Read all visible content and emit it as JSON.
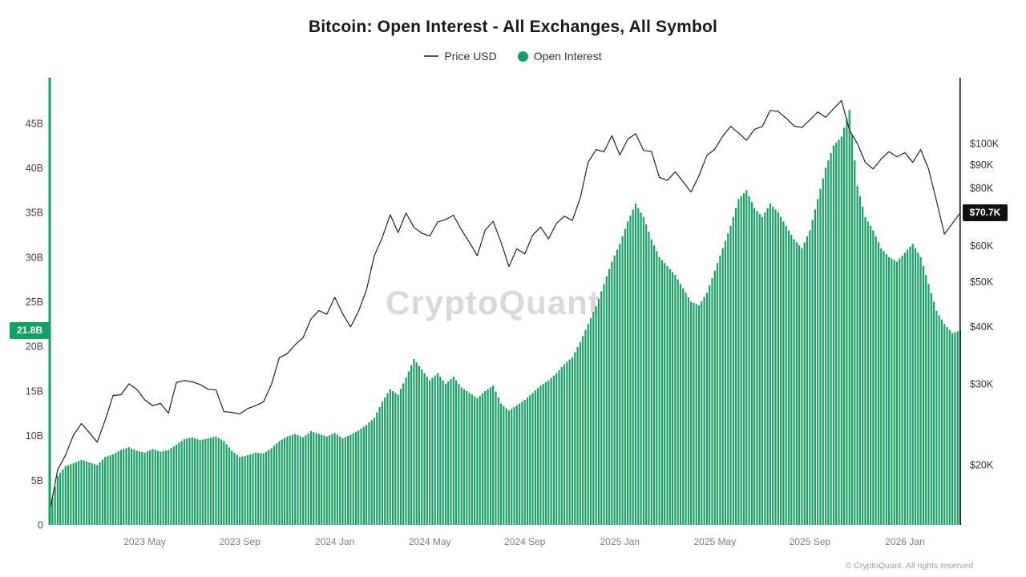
{
  "header": {
    "title": "Bitcoin: Open Interest - All Exchanges, All Symbol",
    "legend": [
      {
        "label": "Price USD",
        "marker": "line",
        "color": "#555555"
      },
      {
        "label": "Open Interest",
        "marker": "dot",
        "color": "#15a162"
      }
    ]
  },
  "badges": {
    "open_interest": {
      "label": "21.8B",
      "value": 21.8,
      "bg": "#15a162"
    },
    "price": {
      "label": "$70.7K",
      "value": 70.7,
      "bg": "#111111"
    }
  },
  "watermark": "CryptoQuant",
  "footer": "© CryptoQuant. All rights reserved",
  "chart_data": {
    "type": "bar",
    "title": "Bitcoin: Open Interest - All Exchanges, All Symbol",
    "x_unit": "months since 2023-01",
    "x_domain": [
      0,
      38.33
    ],
    "x_ticks": [
      {
        "t": 4,
        "label": "2023 May"
      },
      {
        "t": 8,
        "label": "2023 Sep"
      },
      {
        "t": 12,
        "label": "2024 Jan"
      },
      {
        "t": 16,
        "label": "2024 May"
      },
      {
        "t": 20,
        "label": "2024 Sep"
      },
      {
        "t": 24,
        "label": "2025 Jan"
      },
      {
        "t": 28,
        "label": "2025 May"
      },
      {
        "t": 32,
        "label": "2025 Sep"
      },
      {
        "t": 36,
        "label": "2026 Jan"
      }
    ],
    "y_left": {
      "label": "Open Interest (billions USD)",
      "scale": "linear",
      "domain": [
        0,
        50.1
      ],
      "ticks": [
        {
          "v": 0,
          "label": "0"
        },
        {
          "v": 5,
          "label": "5B"
        },
        {
          "v": 10,
          "label": "10B"
        },
        {
          "v": 15,
          "label": "15B"
        },
        {
          "v": 20,
          "label": "20B"
        },
        {
          "v": 25,
          "label": "25B"
        },
        {
          "v": 30,
          "label": "30B"
        },
        {
          "v": 35,
          "label": "35B"
        },
        {
          "v": 40,
          "label": "40B"
        },
        {
          "v": 45,
          "label": "45B"
        }
      ]
    },
    "y_right": {
      "label": "Price USD",
      "scale": "log",
      "domain": [
        14.8,
        139
      ],
      "unit": "K USD",
      "ticks": [
        {
          "v": 20,
          "label": "$20K"
        },
        {
          "v": 30,
          "label": "$30K"
        },
        {
          "v": 40,
          "label": "$40K"
        },
        {
          "v": 50,
          "label": "$50K"
        },
        {
          "v": 60,
          "label": "$60K"
        },
        {
          "v": 80,
          "label": "$80K"
        },
        {
          "v": 90,
          "label": "$90K"
        },
        {
          "v": 100,
          "label": "$100K"
        }
      ]
    },
    "grid": false,
    "legend_position": "top-center",
    "series": [
      {
        "name": "Open Interest",
        "type": "bar",
        "axis": "left",
        "color": "#15a162",
        "values": [
          1.8,
          5.5,
          6.6,
          6.9,
          7.3,
          7.0,
          6.7,
          7.6,
          7.9,
          8.4,
          8.7,
          8.3,
          8.1,
          8.5,
          8.2,
          8.4,
          9.0,
          9.6,
          9.8,
          9.5,
          9.7,
          9.9,
          9.4,
          8.3,
          7.6,
          7.8,
          8.1,
          8.0,
          8.6,
          9.4,
          9.9,
          10.2,
          9.8,
          10.5,
          10.2,
          9.9,
          10.3,
          9.7,
          10.1,
          10.6,
          11.2,
          12.0,
          13.8,
          15.2,
          14.6,
          16.5,
          18.6,
          17.4,
          16.2,
          17.0,
          15.8,
          16.6,
          15.4,
          14.8,
          14.2,
          15.0,
          15.6,
          13.6,
          12.8,
          13.4,
          14.0,
          14.8,
          15.6,
          16.2,
          17.0,
          18.0,
          18.8,
          20.5,
          22.5,
          24.5,
          27.0,
          29.5,
          31.5,
          34.0,
          36.0,
          34.5,
          32.0,
          30.0,
          29.0,
          28.0,
          26.5,
          25.0,
          24.6,
          26.0,
          28.5,
          31.0,
          33.5,
          36.5,
          37.5,
          35.5,
          34.5,
          36.0,
          35.0,
          33.5,
          32.0,
          31.0,
          33.0,
          36.5,
          40.0,
          42.5,
          43.5,
          46.5,
          38.0,
          34.5,
          33.0,
          31.0,
          30.0,
          29.5,
          30.5,
          31.5,
          30.0,
          27.0,
          24.0,
          22.5,
          21.5,
          21.8
        ]
      },
      {
        "name": "Price USD",
        "type": "line",
        "axis": "right",
        "color": "#222222",
        "values": [
          15.8,
          19.5,
          21.0,
          23.2,
          24.6,
          23.5,
          22.4,
          25.0,
          28.3,
          28.4,
          30.0,
          29.2,
          27.7,
          26.9,
          27.2,
          25.9,
          30.2,
          30.5,
          30.3,
          29.9,
          29.2,
          29.1,
          26.1,
          26.0,
          25.8,
          26.5,
          26.9,
          27.4,
          29.9,
          34.2,
          34.9,
          36.5,
          37.8,
          41.5,
          43.3,
          42.5,
          46.3,
          42.6,
          39.9,
          43.1,
          48.0,
          57.0,
          62.4,
          70.0,
          64.0,
          70.6,
          65.7,
          63.8,
          62.9,
          67.5,
          68.3,
          69.8,
          64.9,
          61.0,
          57.0,
          64.8,
          67.7,
          61.0,
          54.0,
          59.0,
          57.5,
          63.2,
          65.8,
          62.0,
          67.0,
          69.5,
          68.0,
          76.0,
          91.0,
          97.0,
          95.9,
          104.0,
          94.4,
          102.1,
          105.0,
          96.6,
          96.1,
          84.4,
          83.1,
          86.8,
          82.5,
          78.4,
          85.1,
          94.2,
          97.2,
          103.7,
          109.0,
          105.4,
          101.6,
          107.3,
          108.9,
          118.0,
          117.4,
          113.5,
          109.2,
          108.3,
          112.5,
          117.1,
          114.0,
          119.0,
          124.0,
          107.0,
          100.0,
          91.0,
          88.0,
          92.5,
          96.0,
          93.5,
          95.5,
          91.0,
          97.0,
          88.0,
          75.0,
          63.5,
          67.0,
          70.7
        ]
      }
    ],
    "current": {
      "open_interest_b": 21.8,
      "price_usd_k": 70.7
    }
  }
}
